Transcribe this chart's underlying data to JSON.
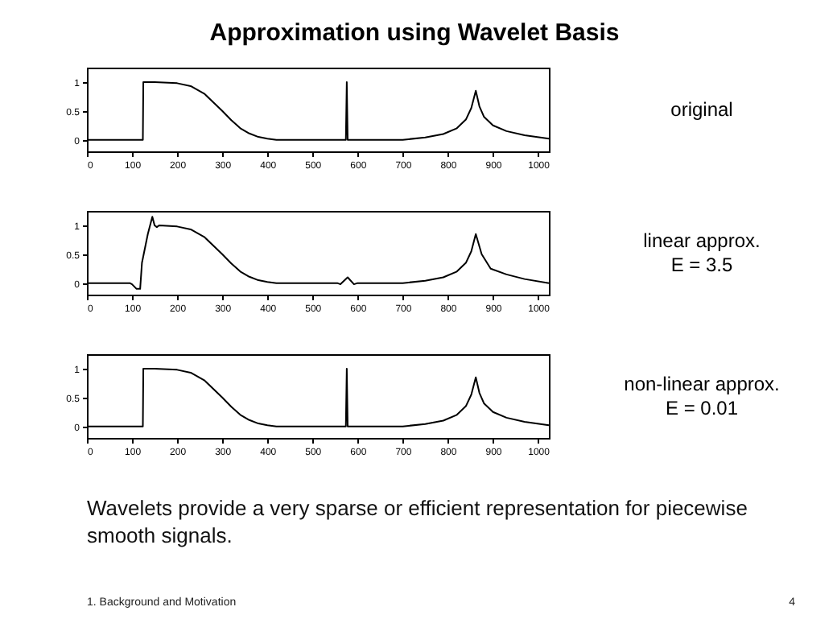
{
  "chart_data": [
    {
      "type": "line",
      "title": "Approximation using Wavelet Basis",
      "xlim": [
        0,
        1024
      ],
      "xticks": [
        0,
        100,
        200,
        300,
        400,
        500,
        600,
        700,
        800,
        900,
        1000
      ],
      "ylim": [
        -0.2,
        1.25
      ],
      "yticks": [
        0,
        0.5,
        1
      ],
      "grid": false,
      "marker": "none",
      "line_style": "solid",
      "annotations": [
        "original"
      ],
      "series": [
        {
          "color": "#000000",
          "x": [
            0,
            124,
            125,
            150,
            200,
            230,
            260,
            280,
            300,
            320,
            340,
            360,
            380,
            400,
            420,
            450,
            574,
            576,
            578,
            700,
            750,
            790,
            820,
            840,
            852,
            862,
            870,
            880,
            900,
            930,
            970,
            1024
          ],
          "values": [
            0,
            0,
            1,
            1,
            0.98,
            0.93,
            0.8,
            0.65,
            0.5,
            0.34,
            0.2,
            0.11,
            0.05,
            0.02,
            0,
            0,
            0,
            1,
            0,
            0,
            0.04,
            0.1,
            0.2,
            0.35,
            0.55,
            0.85,
            0.58,
            0.4,
            0.25,
            0.15,
            0.08,
            0.02
          ]
        }
      ]
    },
    {
      "type": "line",
      "xlim": [
        0,
        1024
      ],
      "xticks": [
        0,
        100,
        200,
        300,
        400,
        500,
        600,
        700,
        800,
        900,
        1000
      ],
      "ylim": [
        -0.2,
        1.25
      ],
      "yticks": [
        0,
        0.5,
        1
      ],
      "grid": false,
      "marker": "none",
      "line_style": "solid",
      "annotations": [
        "linear approx.",
        "E = 3.5"
      ],
      "series": [
        {
          "color": "#000000",
          "x": [
            0,
            95,
            100,
            110,
            118,
            122,
            135,
            145,
            150,
            155,
            160,
            200,
            230,
            260,
            280,
            300,
            320,
            340,
            360,
            380,
            400,
            420,
            450,
            555,
            562,
            578,
            592,
            600,
            700,
            750,
            790,
            820,
            840,
            852,
            862,
            875,
            895,
            930,
            970,
            1024
          ],
          "values": [
            0,
            0,
            -0.02,
            -0.1,
            -0.1,
            0.35,
            0.85,
            1.15,
            1.0,
            0.97,
            1.0,
            0.98,
            0.93,
            0.8,
            0.65,
            0.5,
            0.34,
            0.2,
            0.11,
            0.05,
            0.02,
            0,
            0,
            0,
            -0.02,
            0.1,
            -0.02,
            0,
            0,
            0.04,
            0.1,
            0.2,
            0.35,
            0.55,
            0.85,
            0.5,
            0.25,
            0.15,
            0.07,
            0
          ]
        }
      ]
    },
    {
      "type": "line",
      "xlim": [
        0,
        1024
      ],
      "xticks": [
        0,
        100,
        200,
        300,
        400,
        500,
        600,
        700,
        800,
        900,
        1000
      ],
      "ylim": [
        -0.2,
        1.25
      ],
      "yticks": [
        0,
        0.5,
        1
      ],
      "grid": false,
      "marker": "none",
      "line_style": "solid",
      "annotations": [
        "non-linear approx.",
        "E = 0.01"
      ],
      "series": [
        {
          "color": "#000000",
          "x": [
            0,
            124,
            125,
            150,
            200,
            230,
            260,
            280,
            300,
            320,
            340,
            360,
            380,
            400,
            420,
            450,
            574,
            576,
            578,
            700,
            750,
            790,
            820,
            840,
            852,
            862,
            870,
            880,
            900,
            930,
            970,
            1024
          ],
          "values": [
            0,
            0,
            1,
            1,
            0.98,
            0.93,
            0.8,
            0.65,
            0.5,
            0.34,
            0.2,
            0.11,
            0.05,
            0.02,
            0,
            0,
            0,
            1,
            0,
            0,
            0.04,
            0.1,
            0.2,
            0.35,
            0.55,
            0.85,
            0.58,
            0.4,
            0.25,
            0.15,
            0.08,
            0.02
          ]
        }
      ]
    },
    {
      "type": "other",
      "annotations": [
        "Wavelets provide a very sparse or efficient representation for piecewise smooth signals.",
        "1. Background and Motivation",
        "4"
      ]
    }
  ]
}
